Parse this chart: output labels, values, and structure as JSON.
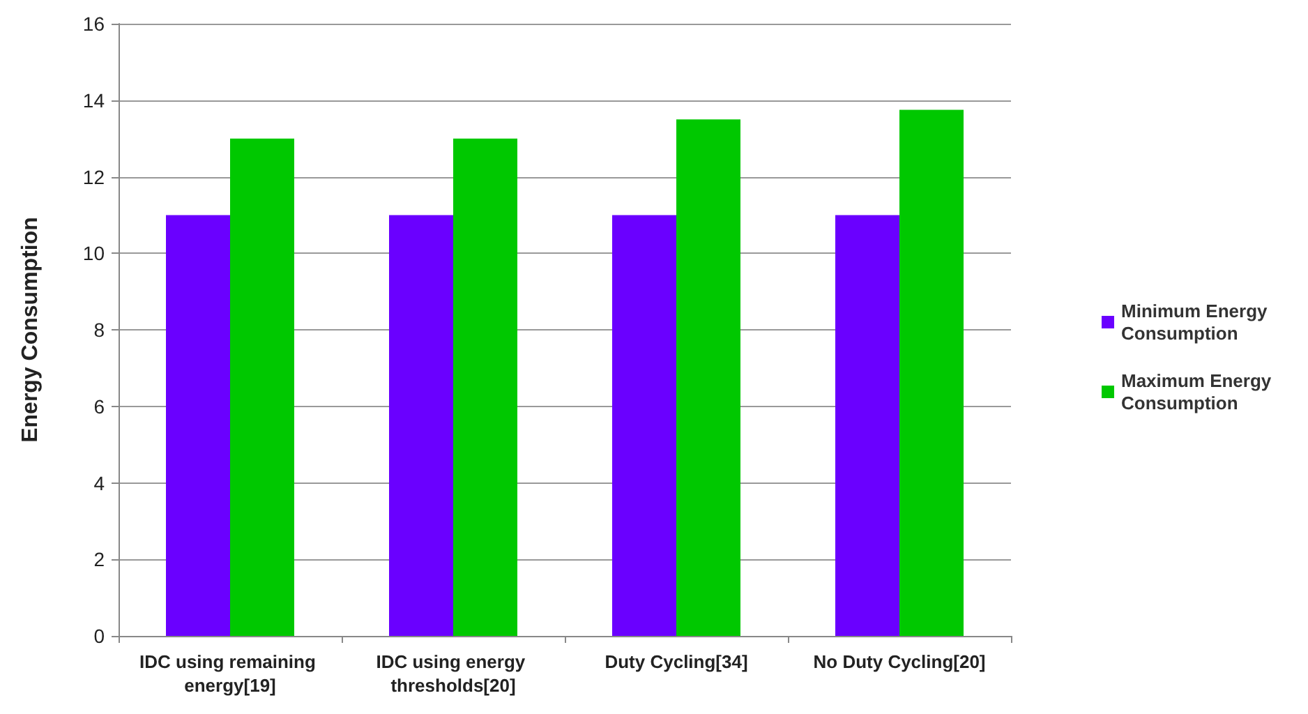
{
  "chart_data": {
    "type": "bar",
    "ylabel": "Energy Consumption",
    "categories": [
      "IDC using remaining energy[19]",
      "IDC using energy thresholds[20]",
      "Duty Cycling[34]",
      "No Duty Cycling[20]"
    ],
    "series": [
      {
        "name": "Minimum Energy Consumption",
        "color": "#6a00ff",
        "values": [
          11,
          11,
          11,
          11
        ]
      },
      {
        "name": "Maximum Energy Consumption",
        "color": "#00c800",
        "values": [
          13,
          13,
          13.5,
          13.75
        ]
      }
    ],
    "ylim": [
      0,
      16
    ],
    "yticks": [
      0,
      2,
      4,
      6,
      8,
      10,
      12,
      14,
      16
    ],
    "grid": "y",
    "legend": "right"
  }
}
